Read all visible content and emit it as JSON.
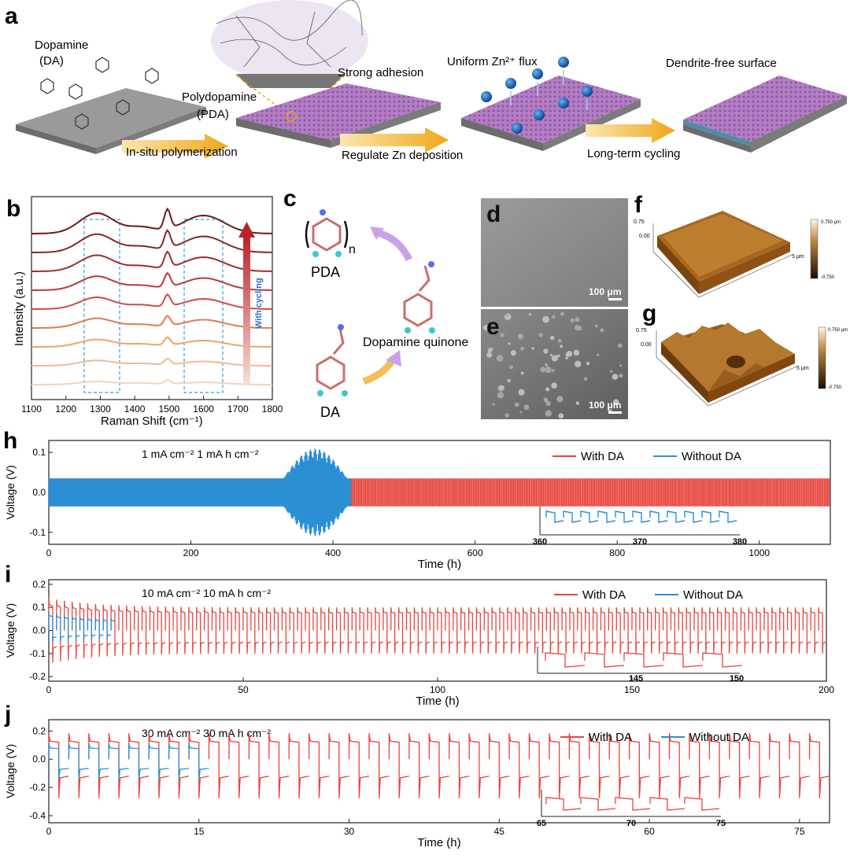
{
  "panels": {
    "a": "a",
    "b": "b",
    "c": "c",
    "d": "d",
    "e": "e",
    "f": "f",
    "g": "g",
    "h": "h",
    "i": "i",
    "j": "j"
  },
  "schematic": {
    "dopamine": "Dopamine",
    "da_abbr": "(DA)",
    "polydopamine": "Polydopamine",
    "pda_abbr": "(PDA)",
    "strong_adhesion": "Strong adhesion",
    "uniform_flux": "Uniform Zn²⁺ flux",
    "dendrite_free": "Dendrite-free surface",
    "step1": "In-situ polymerization",
    "step2": "Regulate Zn deposition",
    "step3": "Long-term cycling"
  },
  "raman": {
    "ylabel": "Intensity (a.u.)",
    "xlabel": "Raman Shift (cm⁻¹)",
    "arrow_label": "With cycling",
    "xticks": [
      "1100",
      "1200",
      "1300",
      "1400",
      "1500",
      "1600",
      "1700",
      "1800"
    ],
    "colors": [
      "#f3d2bf",
      "#f1b98f",
      "#eda26a",
      "#e07b4f",
      "#cf4b43",
      "#b93a35",
      "#a02c2c",
      "#8a2424",
      "#6b1a1a"
    ]
  },
  "chemistry": {
    "pda": "PDA",
    "n": "n",
    "da": "DA",
    "quinone": "Dopamine quinone"
  },
  "sem": {
    "scale_d": "100 μm",
    "scale_e": "100 μm"
  },
  "afm": {
    "z_top": "0.75",
    "z_mid": "0.00",
    "z_bot": "-0.75",
    "bar_top": "0.750 μm",
    "bar_bot": "-0.750",
    "axis_unit": "5 μm"
  },
  "chart_data": [
    {
      "type": "line",
      "panel": "h",
      "title": "1 mA cm⁻²   1 mA h cm⁻²",
      "xlabel": "Time (h)",
      "ylabel": "Voltage (V)",
      "xlim": [
        0,
        1100
      ],
      "ylim": [
        -0.13,
        0.13
      ],
      "xticks": [
        0,
        200,
        400,
        600,
        800,
        1000
      ],
      "yticks": [
        {
          "v": 0.1,
          "t": "0.1"
        },
        {
          "v": 0.0,
          "t": "0.0"
        },
        {
          "v": -0.1,
          "t": "-0.1"
        }
      ],
      "series": [
        {
          "name": "With DA",
          "color": "#e8453c",
          "x_end": 1100,
          "amplitude": 0.035
        },
        {
          "name": "Without DA",
          "color": "#2b8fd6",
          "x_end": 425,
          "amplitude": 0.035,
          "failure_x": [
            330,
            420
          ],
          "peak_amplitude": 0.11
        }
      ],
      "inset": {
        "xlim": [
          360,
          380
        ],
        "xticks": [
          "360",
          "370",
          "380"
        ]
      }
    },
    {
      "type": "line",
      "panel": "i",
      "title": "10 mA cm⁻²   10 mA h cm⁻²",
      "xlabel": "Time (h)",
      "ylabel": "Voltage (V)",
      "xlim": [
        0,
        200
      ],
      "ylim": [
        -0.22,
        0.22
      ],
      "xticks": [
        0,
        50,
        100,
        150,
        200
      ],
      "yticks": [
        {
          "v": 0.2,
          "t": "0.2"
        },
        {
          "v": 0.1,
          "t": "0.1"
        },
        {
          "v": 0.0,
          "t": "0.0"
        },
        {
          "v": -0.1,
          "t": "-0.1"
        },
        {
          "v": -0.2,
          "t": "-0.2"
        }
      ],
      "series": [
        {
          "name": "With DA",
          "color": "#e8453c",
          "x_end": 200,
          "period": 2,
          "amp_start": 0.14,
          "amp_end": 0.1
        },
        {
          "name": "Without DA",
          "color": "#2b8fd6",
          "x_end": 17,
          "period": 2,
          "amp_start": 0.08,
          "amp_end": 0.05
        }
      ],
      "inset": {
        "xlim": [
          141,
          150
        ],
        "xticks": [
          "145",
          "150"
        ]
      }
    },
    {
      "type": "line",
      "panel": "j",
      "title": "30 mA cm⁻²  30 mA h cm⁻²",
      "xlabel": "Time (h)",
      "ylabel": "Voltage (V)",
      "xlim": [
        0,
        78
      ],
      "ylim": [
        -0.45,
        0.28
      ],
      "xticks": [
        0,
        15,
        30,
        45,
        60,
        75
      ],
      "yticks": [
        {
          "v": 0.2,
          "t": "0.2"
        },
        {
          "v": 0.0,
          "t": "0.0"
        },
        {
          "v": -0.2,
          "t": "-0.2"
        },
        {
          "v": -0.4,
          "t": "-0.4"
        }
      ],
      "series": [
        {
          "name": "With DA",
          "color": "#e8453c",
          "x_end": 78,
          "period": 2,
          "amp_pos": 0.16,
          "amp_neg": -0.24
        },
        {
          "name": "Without DA",
          "color": "#2b8fd6",
          "x_end": 16,
          "period": 2,
          "amp_pos": 0.1,
          "amp_neg": -0.13
        }
      ],
      "inset": {
        "xlim": [
          65,
          75
        ],
        "xticks": [
          "65",
          "70",
          "75"
        ]
      }
    }
  ]
}
